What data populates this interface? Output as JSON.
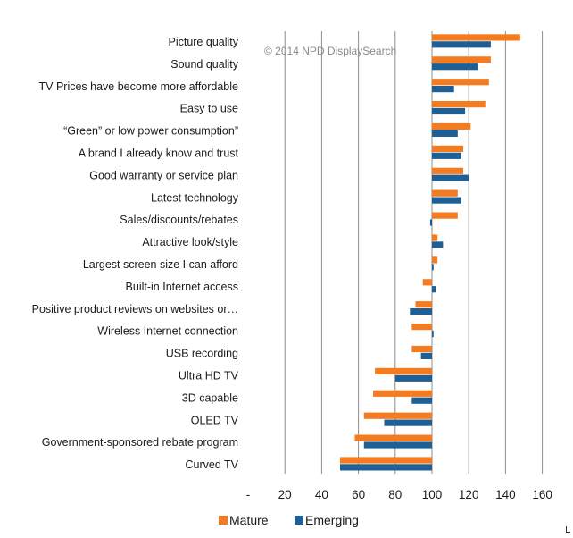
{
  "watermark": "© 2014 NPD DisplaySearch",
  "chart_data": {
    "type": "bar",
    "orientation": "horizontal",
    "categories": [
      "Picture quality",
      "Sound quality",
      "TV Prices have become more affordable",
      "Easy to use",
      "“Green” or low power consumption”",
      "A brand I already know and trust",
      "Good warranty or service plan",
      "Latest technology",
      "Sales/discounts/rebates",
      "Attractive look/style",
      "Largest screen size I can afford",
      "Built-in Internet access",
      "Positive product reviews on websites or…",
      "Wireless Internet connection",
      "USB recording",
      "Ultra HD TV",
      "3D capable",
      "OLED TV",
      "Government-sponsored rebate program",
      "Curved TV"
    ],
    "baseline": 100,
    "series": [
      {
        "name": "Mature",
        "values": [
          148,
          132,
          131,
          129,
          121,
          117,
          117,
          114,
          114,
          103,
          103,
          95,
          91,
          89,
          89,
          69,
          68,
          63,
          58,
          50
        ]
      },
      {
        "name": "Emerging",
        "values": [
          132,
          125,
          112,
          118,
          114,
          116,
          120,
          116,
          99,
          106,
          100,
          102,
          88,
          100,
          94,
          80,
          89,
          74,
          63,
          50
        ]
      }
    ],
    "xlim": [
      0,
      160
    ],
    "xticks": [
      "-",
      "20",
      "40",
      "60",
      "80",
      "100",
      "120",
      "140",
      "160"
    ],
    "grid": true,
    "legend_position": "bottom",
    "colors": {
      "Mature": "#F47B20",
      "Emerging": "#1F5F94",
      "grid": "#8c8c8c"
    }
  }
}
